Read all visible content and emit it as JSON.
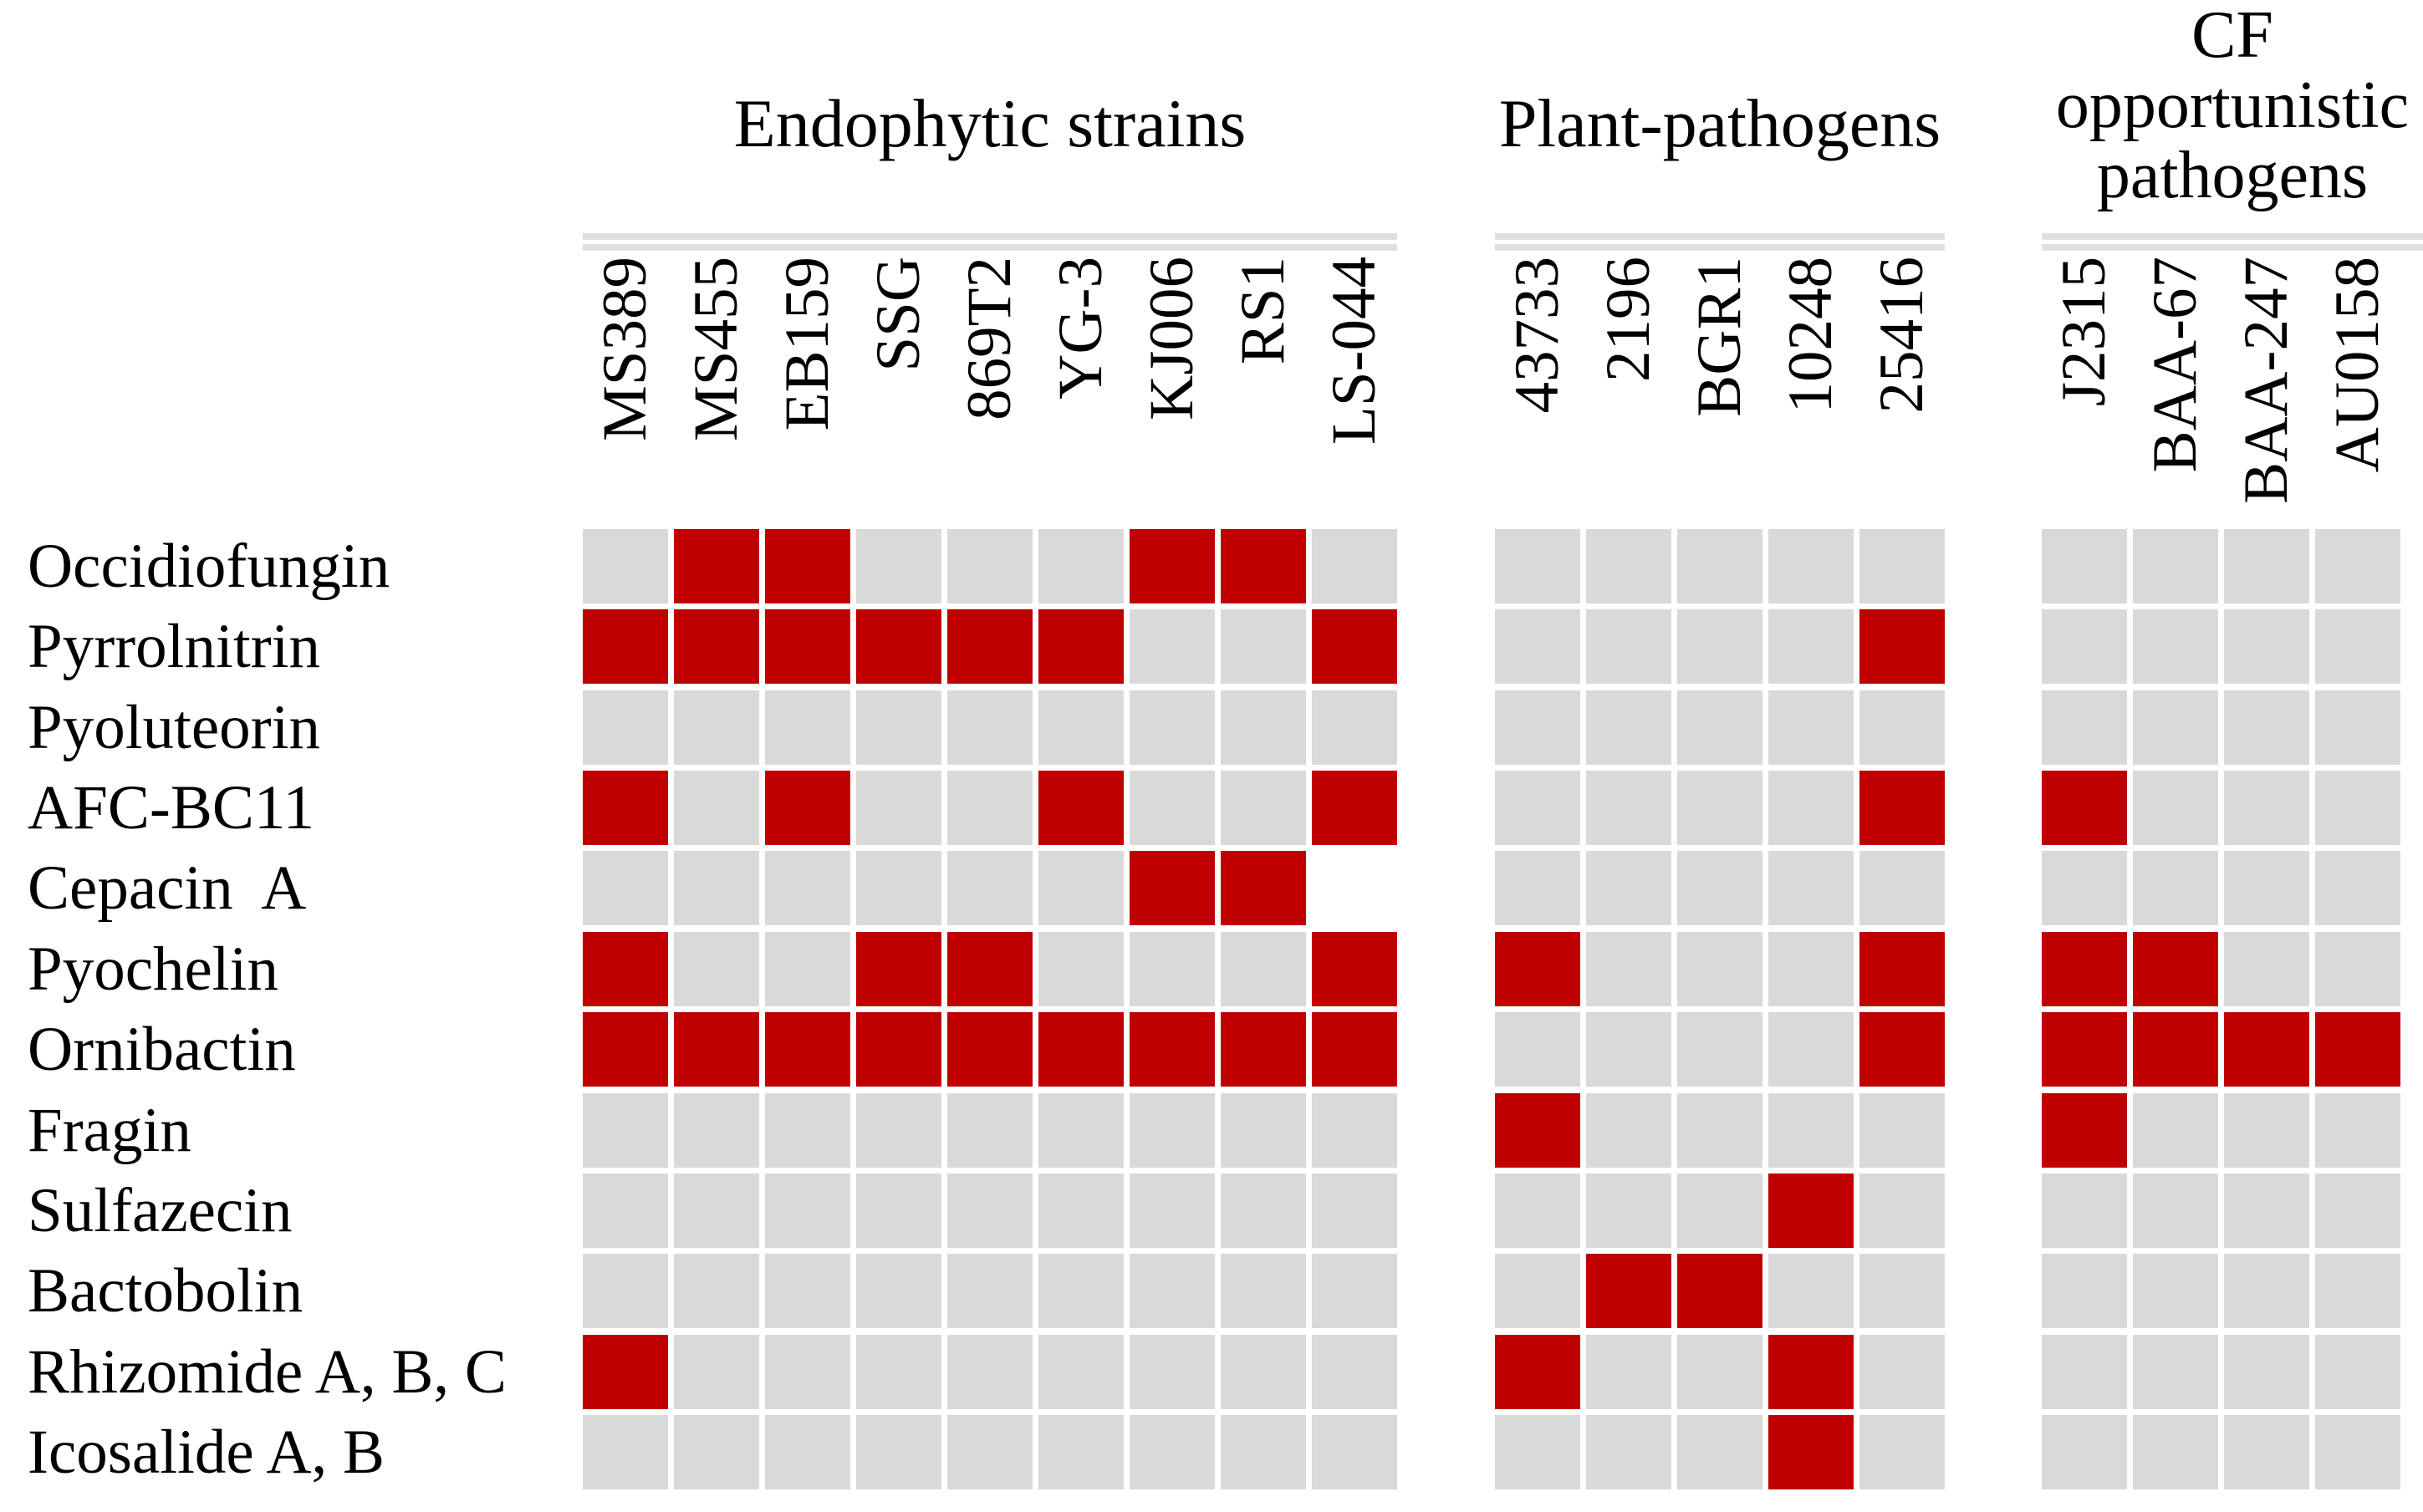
{
  "figure": {
    "kind": "antimicrobial biosynthetic gene cluster presence/absence heatmap",
    "row_label_column": {
      "labels": [
        "Occidiofungin",
        "Pyrrolnitrin",
        "Pyoluteorin",
        "AFC-BC11",
        "Cepacin  A",
        "Pyochelin",
        "Ornibactin",
        "Fragin",
        "Sulfazecin",
        "Bactobolin",
        "Rhizomide A, B, C",
        "Icosalide A, B"
      ]
    }
  },
  "groups": [
    {
      "key": "endophytic",
      "title_lines": [
        "Endophytic strains"
      ],
      "columns": [
        "MS389",
        "MS455",
        "EB159",
        "SSG",
        "869T2",
        "YG-3",
        "KJ006",
        "RS1",
        "LS-044"
      ]
    },
    {
      "key": "plant",
      "title_lines": [
        "Plant-pathogens"
      ],
      "columns": [
        "43733",
        "2196",
        "BGR1",
        "10248",
        "25416"
      ]
    },
    {
      "key": "cf",
      "title_lines": [
        "CF",
        "opportunistic",
        "pathogens"
      ],
      "columns": [
        "J2315",
        "BAA-67",
        "BAA-247",
        "AU0158"
      ]
    }
  ],
  "colors": {
    "present": "#C00000",
    "absent": "#D9D9D9",
    "missing": "#FFFFFF",
    "rule": "#DFDFDF",
    "background": "#FFFFFF",
    "text": "#000000"
  },
  "chart_data": {
    "type": "heatmap",
    "title": "",
    "value_legend": {
      "1": "present (red box)",
      "0": "absent (gray box)",
      "null": "no box (white)"
    },
    "column_groups": [
      {
        "name": "Endophytic strains",
        "columns": [
          "MS389",
          "MS455",
          "EB159",
          "SSG",
          "869T2",
          "YG-3",
          "KJ006",
          "RS1",
          "LS-044"
        ]
      },
      {
        "name": "Plant-pathogens",
        "columns": [
          "43733",
          "2196",
          "BGR1",
          "10248",
          "25416"
        ]
      },
      {
        "name": "CF opportunistic pathogens",
        "columns": [
          "J2315",
          "BAA-67",
          "BAA-247",
          "AU0158"
        ]
      }
    ],
    "rows": [
      {
        "label": "Occidiofungin",
        "endophytic": [
          0,
          1,
          1,
          0,
          0,
          0,
          1,
          1,
          0
        ],
        "plant": [
          0,
          0,
          0,
          0,
          0
        ],
        "cf": [
          0,
          0,
          0,
          0
        ]
      },
      {
        "label": "Pyrrolnitrin",
        "endophytic": [
          1,
          1,
          1,
          1,
          1,
          1,
          0,
          0,
          1
        ],
        "plant": [
          0,
          0,
          0,
          0,
          1
        ],
        "cf": [
          0,
          0,
          0,
          0
        ]
      },
      {
        "label": "Pyoluteorin",
        "endophytic": [
          0,
          0,
          0,
          0,
          0,
          0,
          0,
          0,
          0
        ],
        "plant": [
          0,
          0,
          0,
          0,
          0
        ],
        "cf": [
          0,
          0,
          0,
          0
        ]
      },
      {
        "label": "AFC-BC11",
        "endophytic": [
          1,
          0,
          1,
          0,
          0,
          1,
          0,
          0,
          1
        ],
        "plant": [
          0,
          0,
          0,
          0,
          1
        ],
        "cf": [
          1,
          0,
          0,
          0
        ]
      },
      {
        "label": "Cepacin  A",
        "endophytic": [
          0,
          0,
          0,
          0,
          0,
          0,
          1,
          1,
          null
        ],
        "plant": [
          0,
          0,
          0,
          0,
          0
        ],
        "cf": [
          0,
          0,
          0,
          0
        ]
      },
      {
        "label": "Pyochelin",
        "endophytic": [
          1,
          0,
          0,
          1,
          1,
          0,
          0,
          0,
          1
        ],
        "plant": [
          1,
          0,
          0,
          0,
          1
        ],
        "cf": [
          1,
          1,
          0,
          0
        ]
      },
      {
        "label": "Ornibactin",
        "endophytic": [
          1,
          1,
          1,
          1,
          1,
          1,
          1,
          1,
          1
        ],
        "plant": [
          0,
          0,
          0,
          0,
          1
        ],
        "cf": [
          1,
          1,
          1,
          1
        ]
      },
      {
        "label": "Fragin",
        "endophytic": [
          0,
          0,
          0,
          0,
          0,
          0,
          0,
          0,
          0
        ],
        "plant": [
          1,
          0,
          0,
          0,
          0
        ],
        "cf": [
          1,
          0,
          0,
          0
        ]
      },
      {
        "label": "Sulfazecin",
        "endophytic": [
          0,
          0,
          0,
          0,
          0,
          0,
          0,
          0,
          0
        ],
        "plant": [
          0,
          0,
          0,
          1,
          0
        ],
        "cf": [
          0,
          0,
          0,
          0
        ]
      },
      {
        "label": "Bactobolin",
        "endophytic": [
          0,
          0,
          0,
          0,
          0,
          0,
          0,
          0,
          0
        ],
        "plant": [
          0,
          1,
          1,
          0,
          0
        ],
        "cf": [
          0,
          0,
          0,
          0
        ]
      },
      {
        "label": "Rhizomide A, B, C",
        "endophytic": [
          1,
          0,
          0,
          0,
          0,
          0,
          0,
          0,
          0
        ],
        "plant": [
          1,
          0,
          0,
          1,
          0
        ],
        "cf": [
          0,
          0,
          0,
          0
        ]
      },
      {
        "label": "Icosalide A, B",
        "endophytic": [
          0,
          0,
          0,
          0,
          0,
          0,
          0,
          0,
          0
        ],
        "plant": [
          0,
          0,
          0,
          1,
          0
        ],
        "cf": [
          0,
          0,
          0,
          0
        ]
      }
    ]
  }
}
